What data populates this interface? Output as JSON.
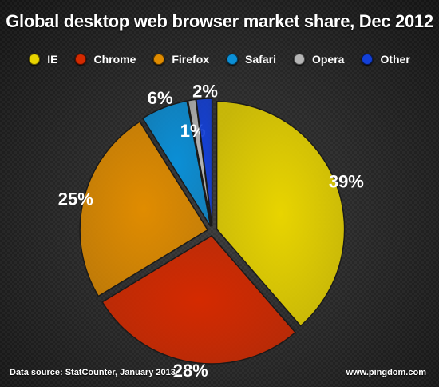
{
  "chart_data": {
    "type": "pie",
    "title": "Global desktop web browser market share, Dec 2012",
    "legend_position": "top",
    "slices": [
      {
        "name": "IE",
        "value": 39,
        "label": "39%",
        "color": "#e8d400"
      },
      {
        "name": "Chrome",
        "value": 28,
        "label": "28%",
        "color": "#d42a00"
      },
      {
        "name": "Firefox",
        "value": 25,
        "label": "25%",
        "color": "#e08c00"
      },
      {
        "name": "Safari",
        "value": 6,
        "label": "6%",
        "color": "#0b8fd6"
      },
      {
        "name": "Opera",
        "value": 1,
        "label": "1%",
        "color": "#b5b5b5"
      },
      {
        "name": "Other",
        "value": 2,
        "label": "2%",
        "color": "#1340d8"
      }
    ]
  },
  "footer": {
    "source": "Data source: StatCounter, January 2013",
    "site": "www.pingdom.com"
  }
}
